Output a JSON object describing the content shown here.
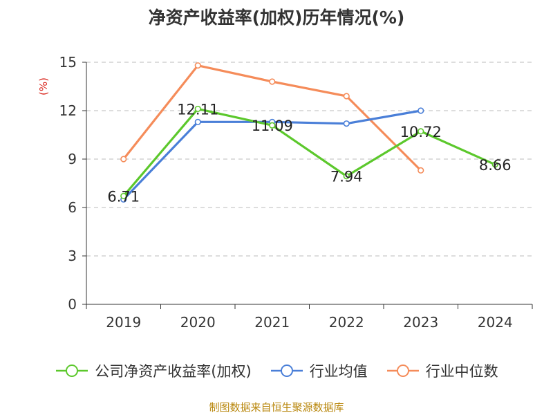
{
  "chart_data": {
    "type": "line",
    "title": "净资产收益率(加权)历年情况(%)",
    "ylabel": "(%)",
    "xlabel": "",
    "categories": [
      "2019",
      "2020",
      "2021",
      "2022",
      "2023",
      "2024"
    ],
    "ylim": [
      0,
      15
    ],
    "yticks": [
      0,
      3,
      6,
      9,
      12,
      15
    ],
    "grid": true,
    "legend_position": "bottom",
    "series": [
      {
        "name": "公司净资产收益率(加权)",
        "color": "#5cc82c",
        "values": [
          6.71,
          12.11,
          11.09,
          7.94,
          10.72,
          8.66
        ],
        "labels": [
          "6.71",
          "12.11",
          "11.09",
          "7.94",
          "10.72",
          "8.66"
        ]
      },
      {
        "name": "行业均值",
        "color": "#4a7fd8",
        "values": [
          6.5,
          11.3,
          11.3,
          11.2,
          12.0,
          null
        ]
      },
      {
        "name": "行业中位数",
        "color": "#f58c5a",
        "values": [
          9.0,
          14.8,
          13.8,
          12.9,
          8.3,
          null
        ]
      }
    ]
  },
  "footer": {
    "source": "制图数据来自恒生聚源数据库"
  }
}
